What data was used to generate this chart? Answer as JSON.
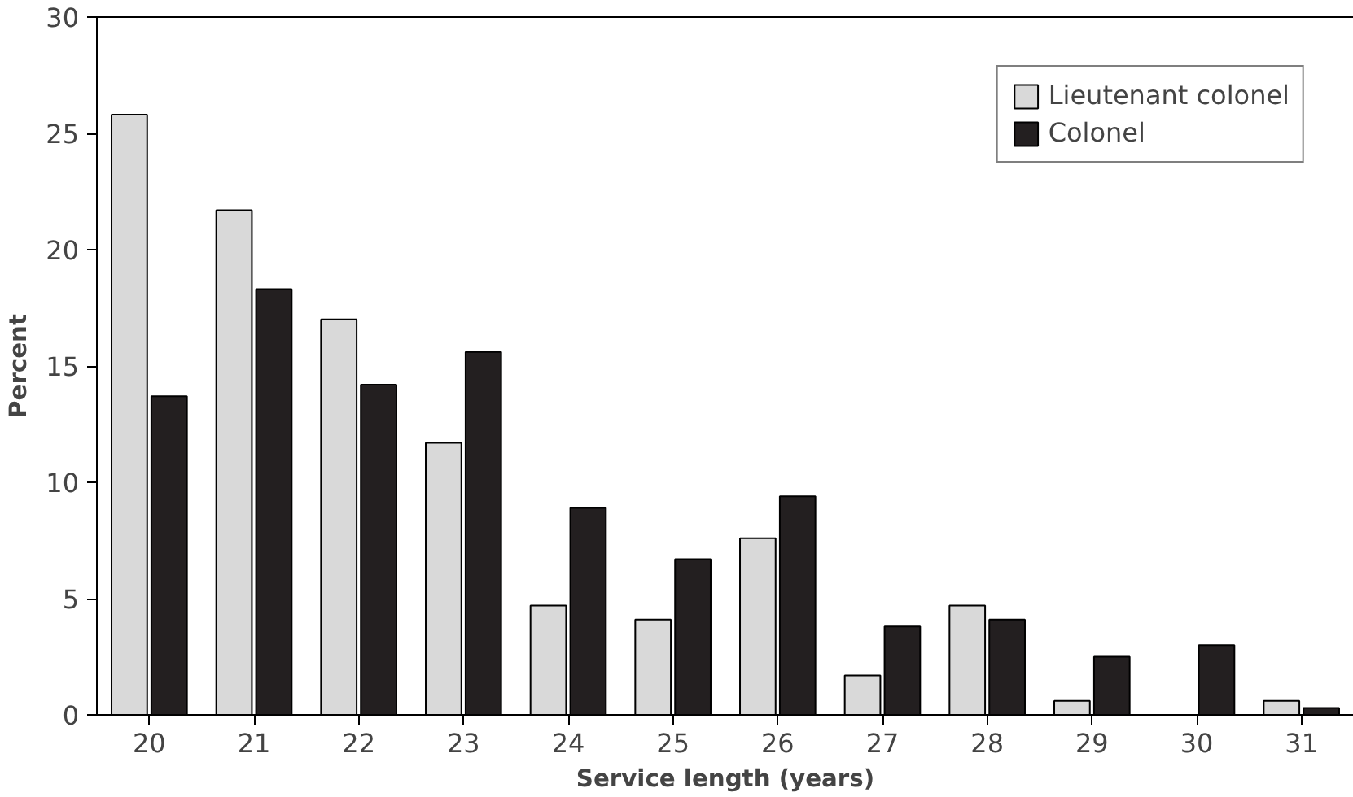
{
  "chart_data": {
    "type": "bar",
    "xlabel": "Service length (years)",
    "ylabel": "Percent",
    "categories": [
      "20",
      "21",
      "22",
      "23",
      "24",
      "25",
      "26",
      "27",
      "28",
      "29",
      "30",
      "31"
    ],
    "series": [
      {
        "name": "Lieutenant colonel",
        "color": "#d9d9d9",
        "values": [
          25.8,
          21.7,
          17.0,
          11.7,
          4.7,
          4.1,
          7.6,
          1.7,
          4.7,
          0.6,
          null,
          0.6
        ]
      },
      {
        "name": "Colonel",
        "color": "#231f20",
        "values": [
          13.7,
          18.3,
          14.2,
          15.6,
          8.9,
          6.7,
          9.4,
          3.8,
          4.1,
          2.5,
          3.0,
          0.3
        ]
      }
    ],
    "ylim": [
      0,
      30
    ],
    "yticks": [
      0,
      5,
      10,
      15,
      20,
      25,
      30
    ],
    "grid": false,
    "legend": "top right"
  }
}
